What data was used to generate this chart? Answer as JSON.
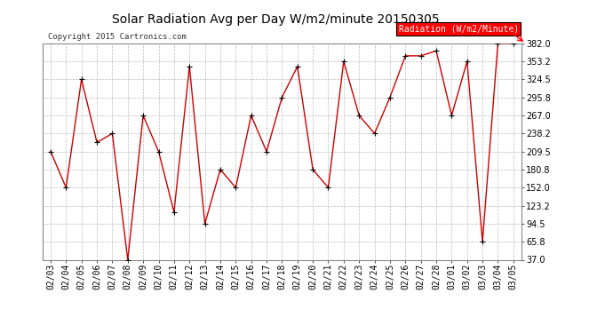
{
  "title": "Solar Radiation Avg per Day W/m2/minute 20150305",
  "copyright": "Copyright 2015 Cartronics.com",
  "legend_label": "Radiation (W/m2/Minute)",
  "dates": [
    "02/03",
    "02/04",
    "02/05",
    "02/06",
    "02/07",
    "02/08",
    "02/09",
    "02/10",
    "02/11",
    "02/12",
    "02/13",
    "02/14",
    "02/15",
    "02/16",
    "02/17",
    "02/18",
    "02/19",
    "02/20",
    "02/21",
    "02/22",
    "02/23",
    "02/24",
    "02/25",
    "02/26",
    "02/27",
    "02/28",
    "03/01",
    "03/02",
    "03/03",
    "03/04",
    "03/05"
  ],
  "values": [
    209.5,
    152.0,
    324.5,
    224.0,
    238.2,
    37.0,
    267.0,
    209.5,
    113.0,
    345.0,
    94.5,
    180.8,
    152.0,
    267.0,
    209.5,
    295.8,
    345.0,
    180.8,
    152.0,
    353.2,
    267.0,
    238.2,
    295.8,
    362.0,
    362.0,
    370.0,
    267.0,
    353.2,
    65.8,
    382.0,
    382.0
  ],
  "ylim": [
    37.0,
    382.0
  ],
  "yticks": [
    37.0,
    65.8,
    94.5,
    123.2,
    152.0,
    180.8,
    209.5,
    238.2,
    267.0,
    295.8,
    324.5,
    353.2,
    382.0
  ],
  "line_color": "#cc0000",
  "marker_color": "#000000",
  "bg_color": "#ffffff",
  "grid_color": "#bbbbbb",
  "title_fontsize": 10,
  "tick_fontsize": 7,
  "copyright_fontsize": 6.5,
  "legend_fontsize": 7
}
